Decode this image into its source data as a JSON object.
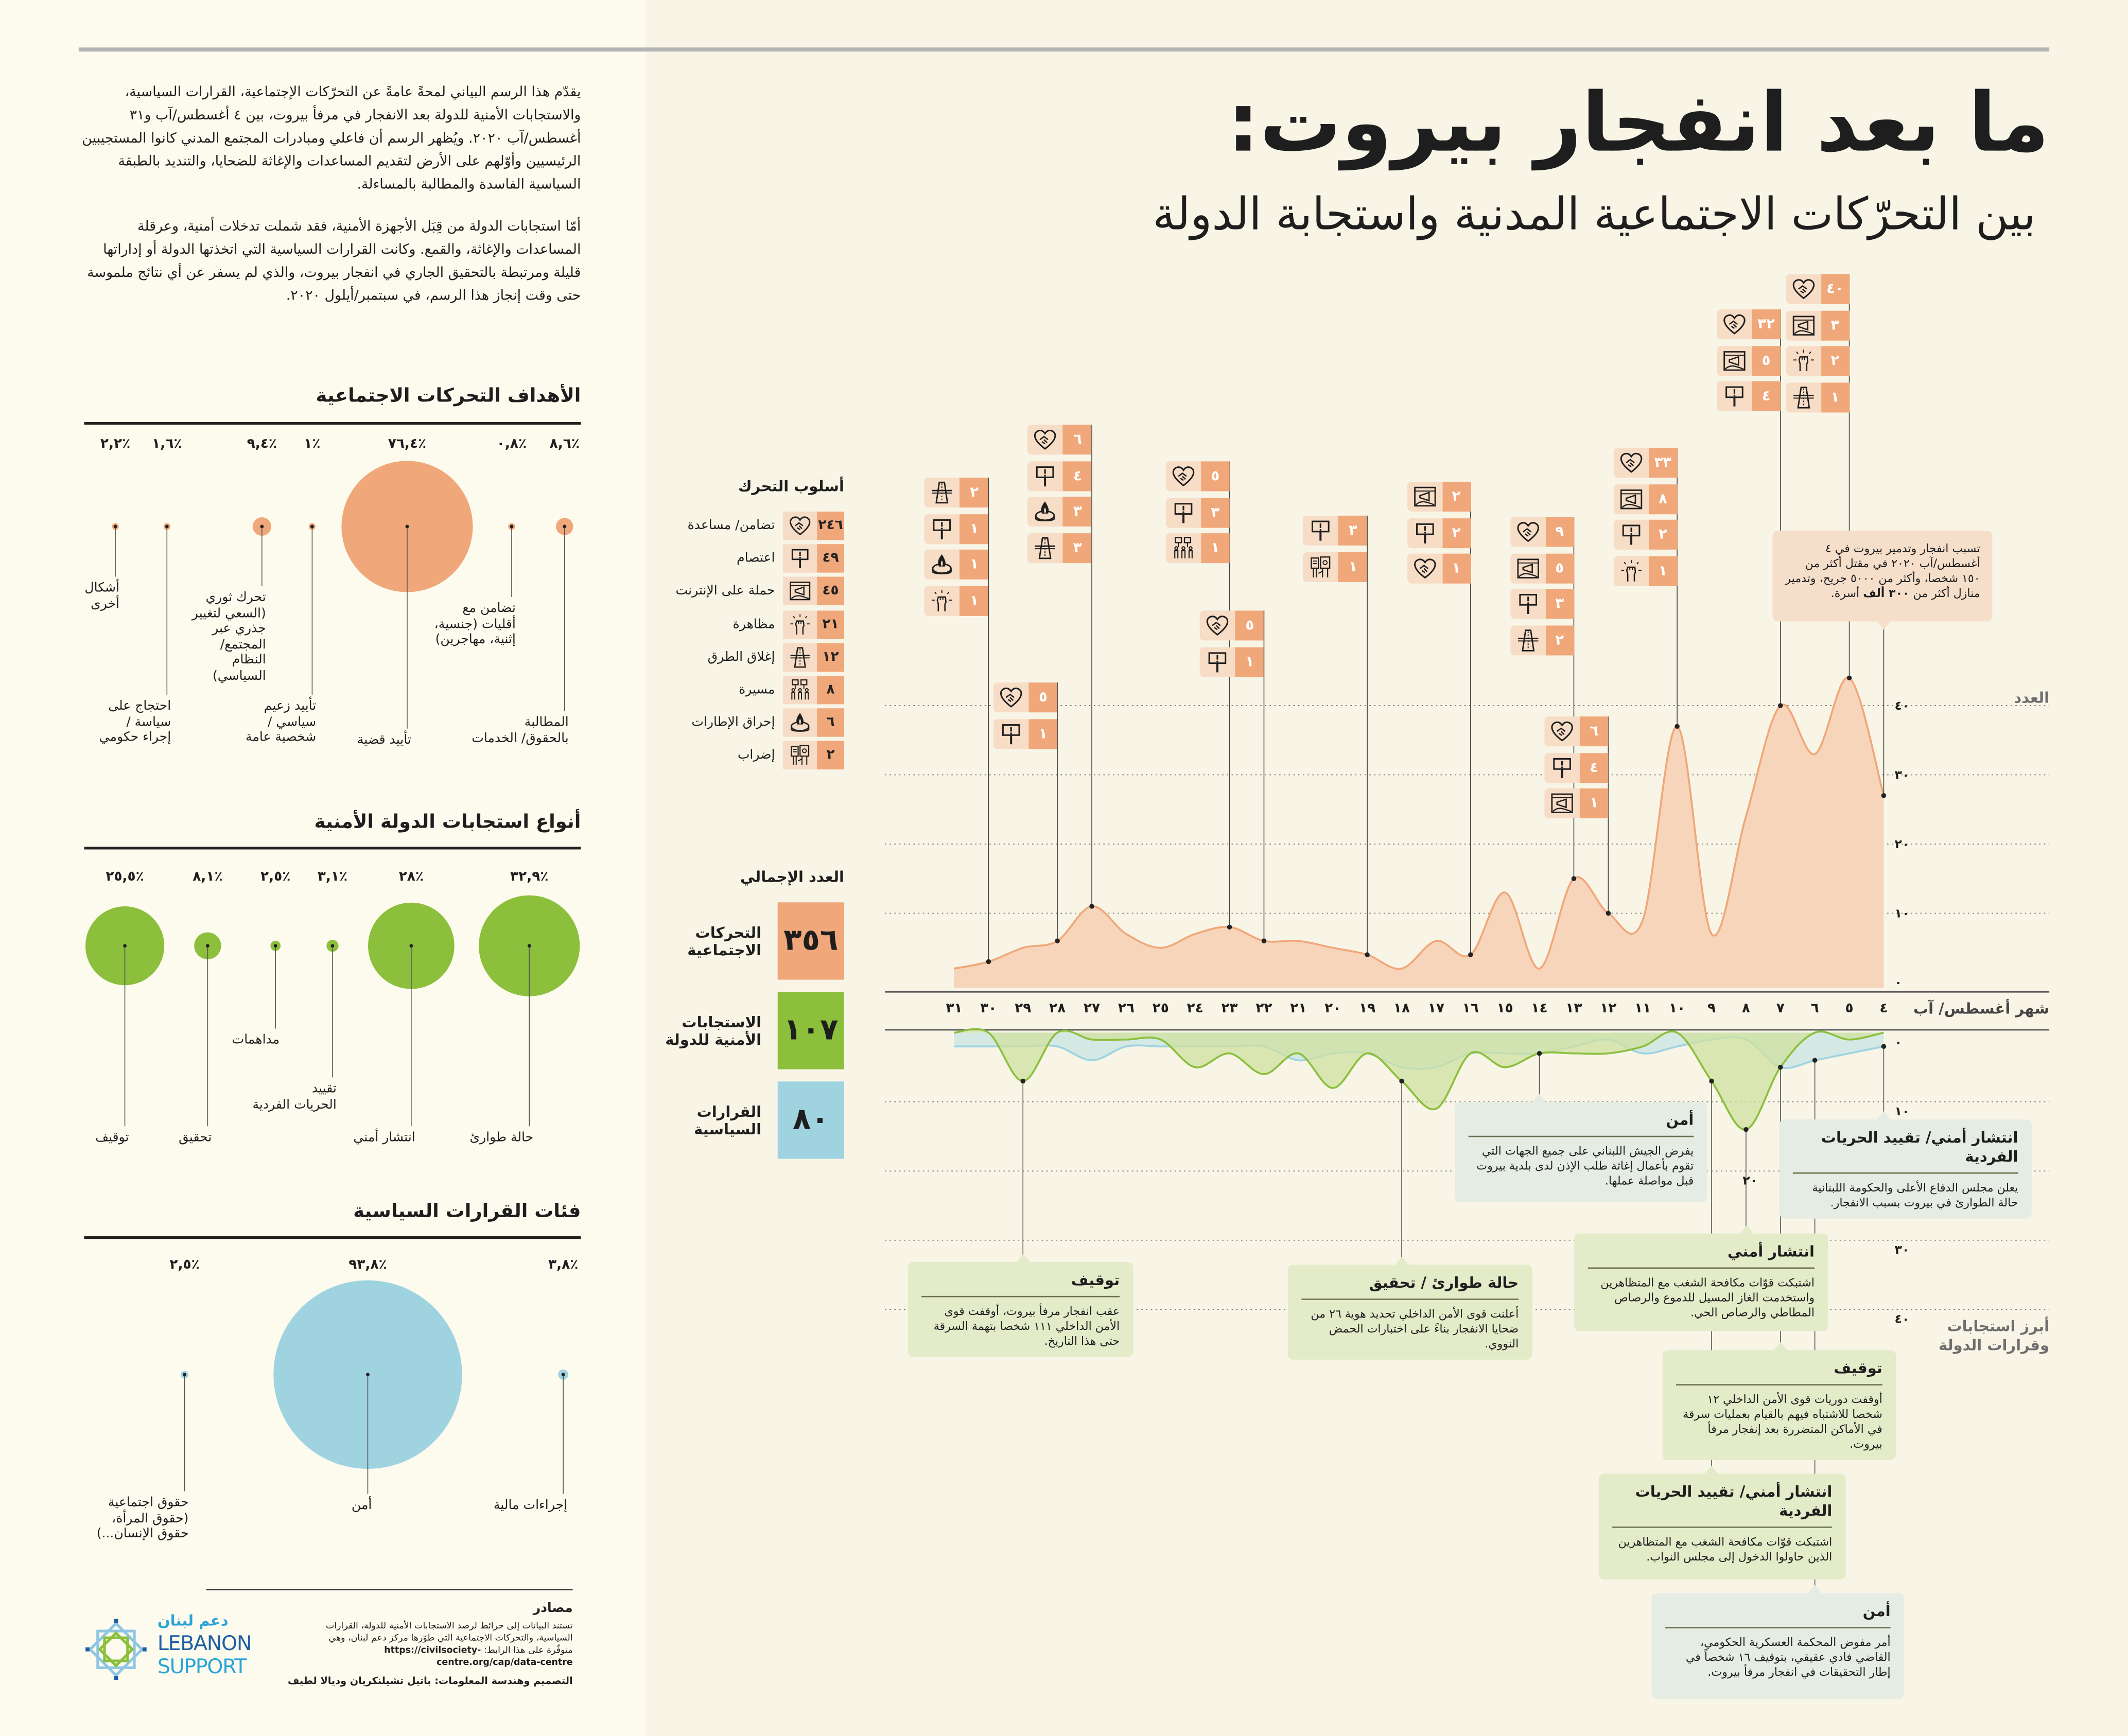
{
  "header": {
    "title": "ما بعد انفجار بيروت:",
    "subtitle": "بين التحرّكات الاجتماعية المدنية واستجابة الدولة"
  },
  "intro": [
    "يقدّم هذا الرسم البياني لمحةً عامةً عن التحرّكات الإجتماعية، القرارات السياسية، والاستجابات الأمنية للدولة بعد الانفجار في مرفأ بيروت، بين ٤ أغسطس/آب و٣١ أغسطس/آب ٢٠٢٠. ويُظهر الرسم أن فاعلي ومبادرات المجتمع المدني كانوا المستجيبين الرئيسيين وأوّلهم على الأرض لتقديم المساعدات والإغاثة للضحايا، والتنديد بالطبقة السياسية الفاسدة والمطالبة بالمساءلة.",
    "أمّا استجابات الدولة من قِبَل الأجهزة الأمنية، فقد شملت تدخلات أمنية، وعرقلة المساعدات والإغاثة، والقمع. وكانت القرارات السياسية التي اتخذتها الدولة أو إداراتها قليلة ومرتبطة بالتحقيق الجاري في انفجار بيروت، والذي لم يسفر عن أي نتائج ملموسة حتى وقت إنجاز هذا الرسم، في سبتمبر/أيلول ٢٠٢٠."
  ],
  "colors": {
    "movements": "#f0a779",
    "movements_fill": "#f6d5bb",
    "security": "#8bbf3c",
    "security_fill": "#cfe0a0",
    "political": "#9fd3e0",
    "political_fill": "#d5e9e4",
    "annotation_green": "#e3ebc8",
    "annotation_blue": "#e4ece3"
  },
  "sections": {
    "goals": {
      "title": "الأهداف التحركات الاجتماعية",
      "items": [
        {
          "label": "المطالبة\nبالحقوق/ الخدمات",
          "pct": 8.6,
          "pct_label": "٨,٦٪"
        },
        {
          "label": "تضامن مع\nأقليات (جنسية،\nإثنية، مهاجرين)",
          "pct": 0.8,
          "pct_label": "٠,٨٪"
        },
        {
          "label": "تأييد قضية",
          "pct": 76.4,
          "pct_label": "٧٦,٤٪"
        },
        {
          "label": "تأييد زعيم\nسياسي /\nشخصية عامة",
          "pct": 1,
          "pct_label": "١٪"
        },
        {
          "label": "تحرك ثوري\n(السعي لتغيير\nجذري عبر\nالمجتمع/\nالنظام\nالسياسي)",
          "pct": 9.4,
          "pct_label": "٩,٤٪"
        },
        {
          "label": "احتجاج على\nسياسة /\nإجراء حكومي",
          "pct": 1.6,
          "pct_label": "١,٦٪"
        },
        {
          "label": "أشكال\nأخرى",
          "pct": 2.2,
          "pct_label": "٢,٢٪"
        }
      ]
    },
    "security": {
      "title": "أنواع استجابات الدولة الأمنية",
      "items": [
        {
          "label": "حالة طوارئ",
          "pct": 32.9,
          "pct_label": "٣٢,٩٪"
        },
        {
          "label": "انتشار أمني",
          "pct": 28,
          "pct_label": "٢٨٪"
        },
        {
          "label": "تقييد\nالحريات الفردية",
          "pct": 3.1,
          "pct_label": "٣,١٪"
        },
        {
          "label": "مداهمات",
          "pct": 2.5,
          "pct_label": "٢,٥٪"
        },
        {
          "label": "تحقيق",
          "pct": 8.1,
          "pct_label": "٨,١٪"
        },
        {
          "label": "توقيف",
          "pct": 25.5,
          "pct_label": "٢٥,٥٪"
        }
      ]
    },
    "political": {
      "title": "فئات القرارات السياسية",
      "items": [
        {
          "label": "إجراءات مالية",
          "pct": 3.8,
          "pct_label": "٣,٨٪"
        },
        {
          "label": "أمن",
          "pct": 93.8,
          "pct_label": "٩٣,٨٪"
        },
        {
          "label": "حقوق اجتماعية\n(حقوق المرأة،\nحقوق الإنسان...)",
          "pct": 2.5,
          "pct_label": "٢,٥٪"
        }
      ]
    }
  },
  "sources": {
    "title": "مصادر",
    "text": "تستند البيانات إلى خرائط لرصد الاستجابات الأمنية للدولة، القرارات السياسية، والتحركات الاجتماعية التي طوّرها مركز دعم لبنان، وهي متوفّرة على هذا الرابط:",
    "url": "https://civilsociety-centre.org/cap/data-centre",
    "credit": "التصميم وهندسة المعلومات: باتيل تشيلنكريان وديالا لطيف",
    "logo_ar": "دعم لبنان",
    "logo_en_1": "LEBANON",
    "logo_en_2": "SUPPORT"
  },
  "legend": {
    "title": "أسلوب التحرك",
    "items": [
      {
        "icon": "solidarity",
        "label": "تضامن/ مساعدة",
        "count": "٢٤٦"
      },
      {
        "icon": "sit-in",
        "label": "اعتصام",
        "count": "٤٩"
      },
      {
        "icon": "online",
        "label": "حملة على الإنترنت",
        "count": "٤٥"
      },
      {
        "icon": "demonstration",
        "label": "مظاهرة",
        "count": "٢١"
      },
      {
        "icon": "road-block",
        "label": "إغلاق الطرق",
        "count": "١٢"
      },
      {
        "icon": "march",
        "label": "مسيرة",
        "count": "٨"
      },
      {
        "icon": "tire-burning",
        "label": "إحراق الإطارات",
        "count": "٦"
      },
      {
        "icon": "strike",
        "label": "إضراب",
        "count": "٢"
      }
    ]
  },
  "totals": {
    "title": "العدد الإجمالي",
    "items": [
      {
        "label": "التحركات\nالاجتماعية",
        "value": "٣٥٦",
        "color": "#f0a779"
      },
      {
        "label": "الاستجابات\nالأمنية للدولة",
        "value": "١٠٧",
        "color": "#8bbf3c"
      },
      {
        "label": "القرارات\nالسياسية",
        "value": "٨٠",
        "color": "#9fd3e0"
      }
    ]
  },
  "explosion_note": {
    "text_before": "تسبب انفجار وتدمير بيروت في ٤ أغسطس/آب ٢٠٢٠ في مقتل أكثر من ١٥٠ شخصا، وأكثر من ٥٠٠٠ جريح، وتدمير منازل أكثر من ",
    "text_bold": "٣٠٠ ألف",
    "text_after": " أسرة."
  },
  "chart_data": [
    {
      "type": "area",
      "ylabel": "العدد",
      "xlabel": "شهر أغسطس/ آب",
      "x": [
        4,
        5,
        6,
        7,
        8,
        9,
        10,
        11,
        12,
        13,
        14,
        15,
        16,
        17,
        18,
        19,
        20,
        21,
        22,
        23,
        24,
        25,
        26,
        27,
        28,
        29,
        30,
        31
      ],
      "x_tick_labels": [
        "٤",
        "٥",
        "٦",
        "٧",
        "٨",
        "٩",
        "١٠",
        "١١",
        "١٢",
        "١٣",
        "١٤",
        "١٥",
        "١٦",
        "١٧",
        "١٨",
        "١٩",
        "٢٠",
        "٢١",
        "٢٢",
        "٢٣",
        "٢٤",
        "٢٥",
        "٢٦",
        "٢٧",
        "٢٨",
        "٢٩",
        "٣٠",
        "٣١"
      ],
      "y_ticks": [
        0,
        10,
        20,
        30,
        40
      ],
      "y_tick_labels": [
        "٠",
        "١٠",
        "٢٠",
        "٣٠",
        "٤٠"
      ],
      "ylim": [
        0,
        45
      ],
      "grid": true,
      "series": [
        {
          "key": "movements",
          "values": [
            27,
            44,
            33,
            40,
            24,
            7,
            37,
            9,
            10,
            15,
            2,
            13,
            4,
            6,
            2,
            4,
            5,
            6,
            6,
            8,
            7,
            5,
            7,
            11,
            6,
            5,
            3,
            2
          ]
        }
      ]
    },
    {
      "type": "area",
      "title": "أبرز استجابات\nوقرارات الدولة",
      "x": [
        4,
        5,
        6,
        7,
        8,
        9,
        10,
        11,
        12,
        13,
        14,
        15,
        16,
        17,
        18,
        19,
        20,
        21,
        22,
        23,
        24,
        25,
        26,
        27,
        28,
        29,
        30,
        31
      ],
      "y_ticks": [
        0,
        10,
        20,
        30,
        40
      ],
      "y_tick_labels": [
        "٠",
        "١٠",
        "٢٠",
        "٣٠",
        "٤٠"
      ],
      "ylim": [
        0,
        40
      ],
      "y_inverted": true,
      "grid": true,
      "series": [
        {
          "key": "political",
          "values": [
            2,
            3,
            4,
            5,
            1,
            1,
            2,
            3,
            1,
            2,
            3,
            3,
            3,
            5,
            5,
            3,
            3,
            4,
            2,
            2,
            2,
            2,
            2,
            4,
            2,
            2,
            2,
            2
          ]
        },
        {
          "key": "security",
          "values": [
            0,
            1,
            0,
            5,
            14,
            7,
            0,
            2,
            3,
            3,
            3,
            5,
            3,
            11,
            7,
            3,
            8,
            3,
            6,
            3,
            5,
            1,
            1,
            1,
            0,
            7,
            0,
            0
          ]
        }
      ]
    }
  ],
  "daily_methods": [
    {
      "date": 5,
      "items": [
        {
          "icon": "solidarity",
          "count": "٤٠"
        },
        {
          "icon": "online",
          "count": "٣"
        },
        {
          "icon": "demonstration",
          "count": "٢"
        },
        {
          "icon": "road-block",
          "count": "١"
        }
      ]
    },
    {
      "date": 7,
      "items": [
        {
          "icon": "solidarity",
          "count": "٣٢"
        },
        {
          "icon": "online",
          "count": "٥"
        },
        {
          "icon": "sit-in",
          "count": "٤"
        }
      ]
    },
    {
      "date": 10,
      "items": [
        {
          "icon": "solidarity",
          "count": "٣٣"
        },
        {
          "icon": "online",
          "count": "٨"
        },
        {
          "icon": "sit-in",
          "count": "٢"
        },
        {
          "icon": "demonstration",
          "count": "١"
        }
      ]
    },
    {
      "date": 13,
      "items": [
        {
          "icon": "solidarity",
          "count": "٩"
        },
        {
          "icon": "online",
          "count": "٥"
        },
        {
          "icon": "sit-in",
          "count": "٣"
        },
        {
          "icon": "road-block",
          "count": "٢"
        }
      ]
    },
    {
      "date": 12,
      "items": [
        {
          "icon": "solidarity",
          "count": "٦"
        },
        {
          "icon": "sit-in",
          "count": "٤"
        },
        {
          "icon": "online",
          "count": "١"
        }
      ]
    },
    {
      "date": 16,
      "items": [
        {
          "icon": "online",
          "count": "٢"
        },
        {
          "icon": "sit-in",
          "count": "٢"
        },
        {
          "icon": "solidarity",
          "count": "١"
        }
      ]
    },
    {
      "date": 19,
      "items": [
        {
          "icon": "sit-in",
          "count": "٣"
        },
        {
          "icon": "strike",
          "count": "١"
        }
      ]
    },
    {
      "date": 22,
      "items": [
        {
          "icon": "solidarity",
          "count": "٥"
        },
        {
          "icon": "sit-in",
          "count": "١"
        }
      ]
    },
    {
      "date": 23,
      "items": [
        {
          "icon": "solidarity",
          "count": "٥"
        },
        {
          "icon": "sit-in",
          "count": "٣"
        },
        {
          "icon": "march",
          "count": "١"
        }
      ]
    },
    {
      "date": 27,
      "items": [
        {
          "icon": "solidarity",
          "count": "٦"
        },
        {
          "icon": "sit-in",
          "count": "٤"
        },
        {
          "icon": "tire-burning",
          "count": "٣"
        },
        {
          "icon": "road-block",
          "count": "٣"
        }
      ]
    },
    {
      "date": 28,
      "items": [
        {
          "icon": "solidarity",
          "count": "٥"
        },
        {
          "icon": "sit-in",
          "count": "١"
        }
      ]
    },
    {
      "date": 30,
      "items": [
        {
          "icon": "road-block",
          "count": "٢"
        },
        {
          "icon": "sit-in",
          "count": "١"
        },
        {
          "icon": "tire-burning",
          "count": "١"
        },
        {
          "icon": "demonstration",
          "count": "١"
        }
      ]
    }
  ],
  "annotations": [
    {
      "date": 29,
      "series": "security",
      "color": "green",
      "title": "توقيف",
      "text": "عقب انفجار مرفأ بيروت، أوقفت قوى الأمن الداخلي ١١١ شخصا بتهمة السرقة حتى هذا التاريخ."
    },
    {
      "date": 18,
      "series": "security",
      "color": "green",
      "title": "حالة طوارئ / تحقيق",
      "text": "أعلنت قوى الأمن الداخلي تحديد هوية ٢٦ من ضحايا الانفجار بناءً على اختبارات الحمض النووي."
    },
    {
      "date": 14,
      "series": "political",
      "color": "blue",
      "title": "أمن",
      "text": "يفرض الجيش اللبناني على جميع الجهات التي تقوم بأعمال إغاثة طلب الإذن لدى بلدية بيروت قبل مواصلة عملها."
    },
    {
      "date": 4,
      "series": "political",
      "color": "blue",
      "title": "انتشار أمني/ تقييد الحريات الفردية",
      "text": "يعلن مجلس الدفاع الأعلى والحكومة اللبنانية حالة الطوارئ في بيروت بسبب الانفجار."
    },
    {
      "date": 8,
      "series": "security",
      "color": "green",
      "title": "انتشار أمني",
      "text": "اشتبكت قوّات مكافحة الشغب مع المتظاهرين واستخدمت الغاز المسيل للدموع والرصاص المطاطي والرصاص الحي."
    },
    {
      "date": 7,
      "series": "security",
      "color": "green",
      "title": "توقيف",
      "text": "أوقفت دوريات قوى الأمن الداخلي ١٢ شخصا للاشتباه فيهم بالقيام بعمليات سرقة في الأماكن المتضررة بعد إنفجار مرفأ بيروت."
    },
    {
      "date": 9,
      "series": "security",
      "color": "green",
      "title": "انتشار أمني/ تقييد الحريات الفردية",
      "text": "اشتبكت قوّات مكافحة الشغب مع المتظاهرين الذين حاولوا الدخول إلى مجلس النواب."
    },
    {
      "date": 6,
      "series": "political",
      "color": "blue",
      "title": "أمن",
      "text": "أمر مفوض المحكمة العسكرية الحكومي، القاضي فادي عقيقي، بتوقيف ١٦ شخصاً في إطار التحقيقات في انفجار مرفأ بيروت."
    }
  ]
}
